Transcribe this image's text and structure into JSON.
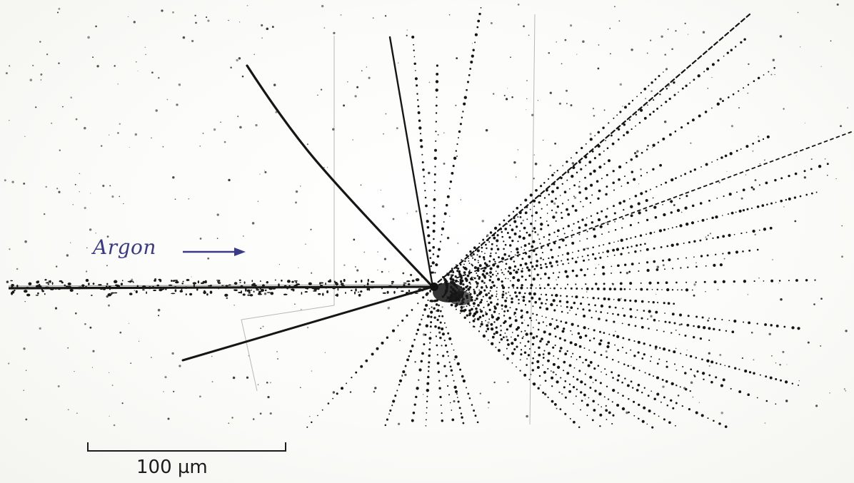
{
  "annotation": {
    "text": "Argon",
    "color": "#3a3a86"
  },
  "scale_bar": {
    "label": "100 µm",
    "value": 100,
    "unit": "µm"
  }
}
